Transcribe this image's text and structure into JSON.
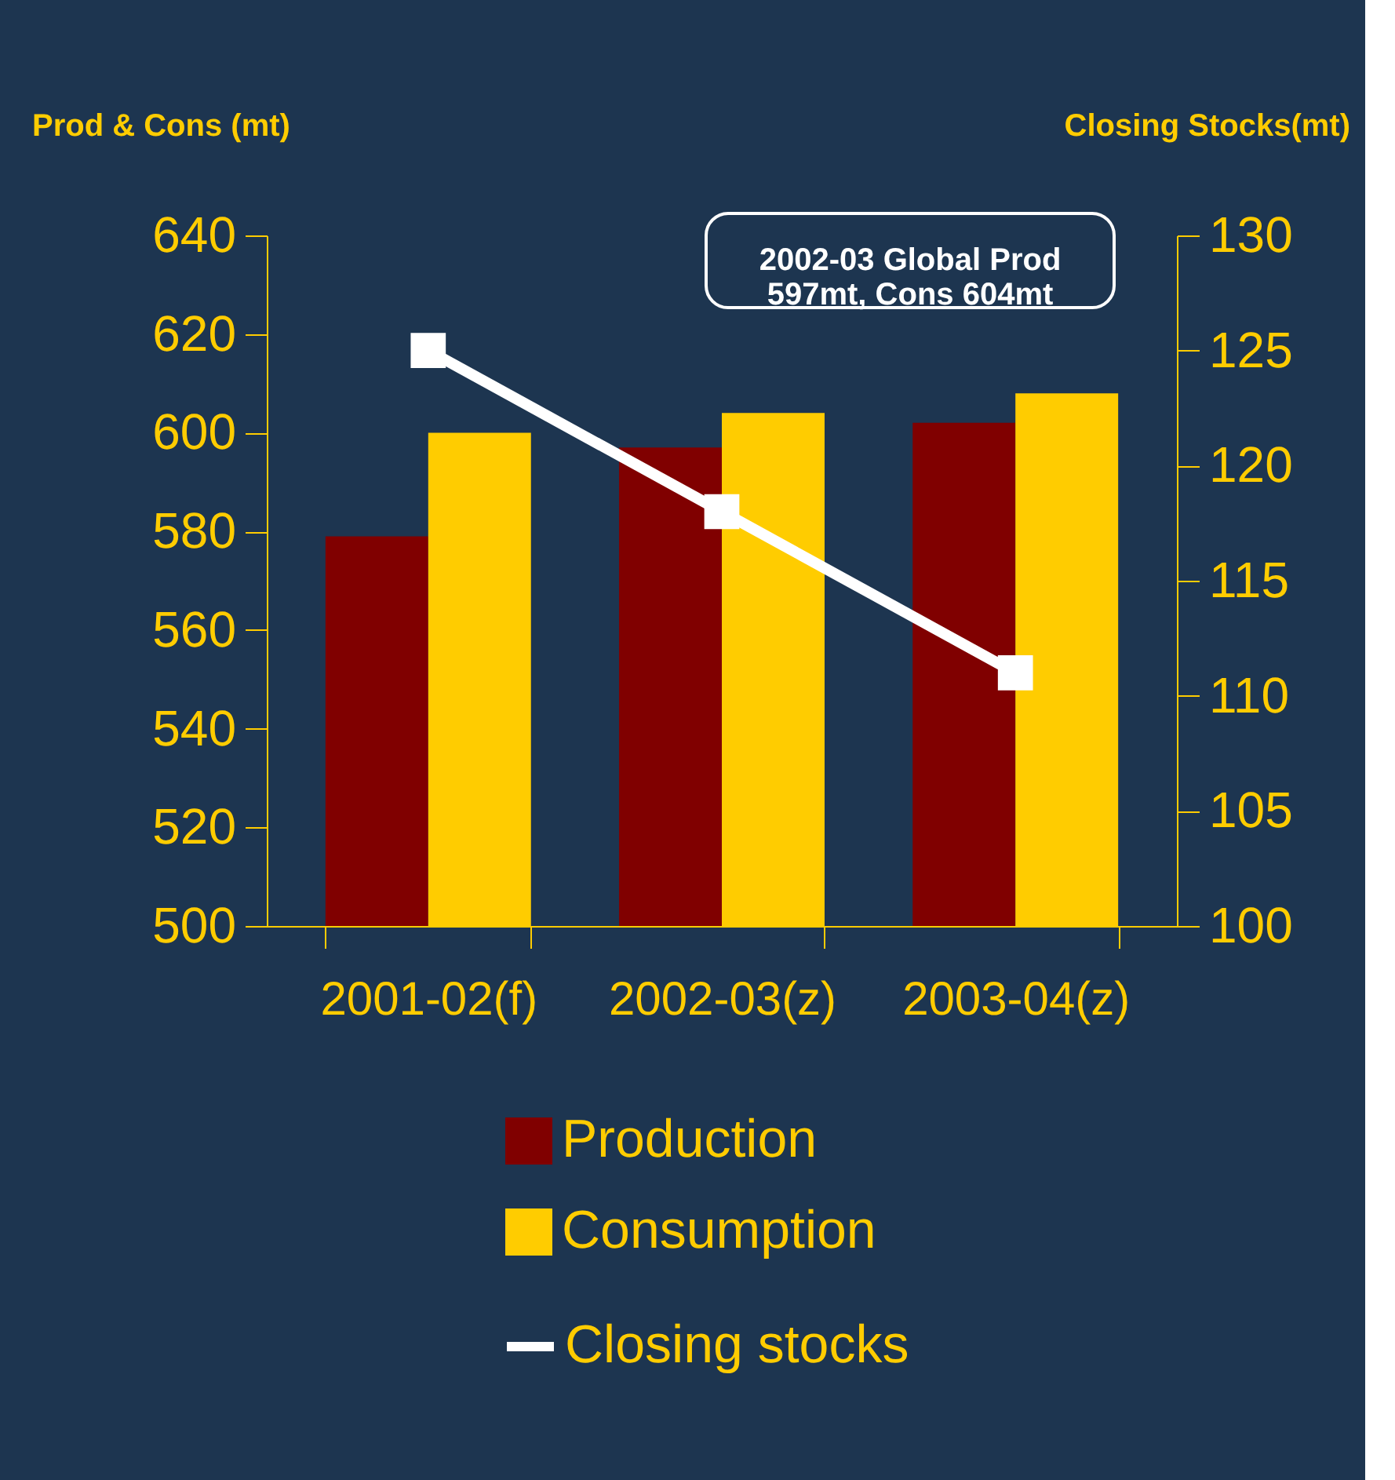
{
  "chart_data": {
    "type": "bar",
    "categories": [
      "2001-02(f)",
      "2002-03(z)",
      "2003-04(z)"
    ],
    "ylabel": "Prod & Cons (mt)",
    "y2label": "Closing Stocks(mt)",
    "ylim": [
      500,
      640
    ],
    "yticks": [
      500,
      520,
      540,
      560,
      580,
      600,
      620,
      640
    ],
    "y2lim": [
      100,
      130
    ],
    "y2ticks": [
      100,
      105,
      110,
      115,
      120,
      125,
      130
    ],
    "series": [
      {
        "name": "Production",
        "color": "#800000",
        "values": [
          579,
          597,
          602
        ]
      },
      {
        "name": "Consumption",
        "color": "#ffcc00",
        "values": [
          600,
          604,
          608
        ]
      },
      {
        "name": "Closing stocks",
        "color": "#ffffff",
        "type": "line",
        "axis": "y2",
        "marker": "square",
        "values": [
          125,
          118,
          111
        ]
      }
    ],
    "annotations": [
      "2002-03 Global Prod\n597mt, Cons 604mt"
    ],
    "legend": "bottom",
    "grid": false
  }
}
